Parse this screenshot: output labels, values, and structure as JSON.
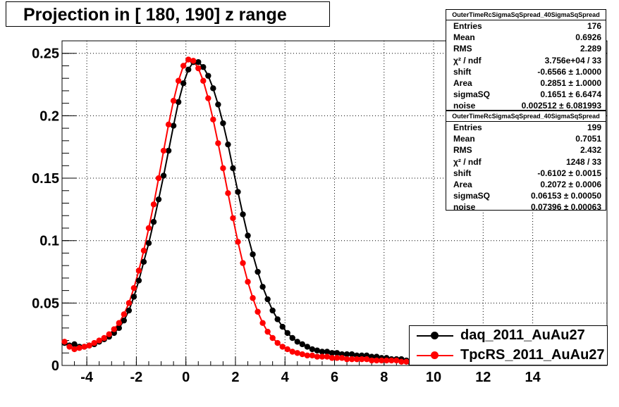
{
  "chart_data": {
    "type": "scatter",
    "title": "Projection in [ 180, 190] z range",
    "xlabel": "",
    "ylabel": "",
    "xlim": [
      -5,
      17
    ],
    "ylim": [
      0,
      0.26
    ],
    "grid": true,
    "xticks": [
      -4,
      -2,
      0,
      2,
      4,
      6,
      8,
      10,
      12,
      14
    ],
    "yticks": [
      0,
      0.05,
      0.1,
      0.15,
      0.2,
      0.25
    ],
    "xtick_labels": [
      "-4",
      "-2",
      "0",
      "2",
      "4",
      "6",
      "8",
      "10",
      "12",
      "14"
    ],
    "ytick_labels": [
      "0",
      "0.05",
      "0.1",
      "0.15",
      "0.2",
      "0.25"
    ],
    "legend_position": "bottom-right",
    "series": [
      {
        "name": "daq_2011_AuAu27",
        "color": "#000000",
        "marker": "circle",
        "x": [
          -4.9,
          -4.7,
          -4.5,
          -4.3,
          -4.1,
          -3.9,
          -3.7,
          -3.5,
          -3.3,
          -3.1,
          -2.9,
          -2.7,
          -2.5,
          -2.3,
          -2.1,
          -1.9,
          -1.7,
          -1.5,
          -1.3,
          -1.1,
          -0.9,
          -0.7,
          -0.5,
          -0.3,
          -0.1,
          0.1,
          0.3,
          0.5,
          0.7,
          0.9,
          1.1,
          1.3,
          1.5,
          1.7,
          1.9,
          2.1,
          2.3,
          2.5,
          2.7,
          2.9,
          3.1,
          3.3,
          3.5,
          3.7,
          3.9,
          4.1,
          4.3,
          4.5,
          4.7,
          4.9,
          5.1,
          5.3,
          5.5,
          5.7,
          5.9,
          6.1,
          6.3,
          6.5,
          6.7,
          6.9,
          7.1,
          7.3,
          7.5,
          7.7,
          7.9,
          8.1,
          8.3,
          8.5,
          8.7,
          8.9,
          9.1
        ],
        "y": [
          0.018,
          0.016,
          0.017,
          0.015,
          0.015,
          0.016,
          0.017,
          0.019,
          0.021,
          0.023,
          0.026,
          0.03,
          0.036,
          0.044,
          0.055,
          0.068,
          0.083,
          0.098,
          0.115,
          0.133,
          0.152,
          0.172,
          0.192,
          0.211,
          0.226,
          0.237,
          0.243,
          0.243,
          0.239,
          0.232,
          0.222,
          0.209,
          0.194,
          0.177,
          0.158,
          0.139,
          0.121,
          0.104,
          0.089,
          0.075,
          0.063,
          0.053,
          0.044,
          0.037,
          0.031,
          0.026,
          0.022,
          0.019,
          0.017,
          0.015,
          0.013,
          0.012,
          0.011,
          0.011,
          0.01,
          0.01,
          0.009,
          0.009,
          0.009,
          0.008,
          0.008,
          0.008,
          0.007,
          0.007,
          0.006,
          0.006,
          0.005,
          0.005,
          0.005,
          0.004,
          0.004
        ]
      },
      {
        "name": "TpcRS_2011_AuAu27",
        "color": "#ff0000",
        "marker": "circle",
        "x": [
          -4.9,
          -4.7,
          -4.5,
          -4.3,
          -4.1,
          -3.9,
          -3.7,
          -3.5,
          -3.3,
          -3.1,
          -2.9,
          -2.7,
          -2.5,
          -2.3,
          -2.1,
          -1.9,
          -1.7,
          -1.5,
          -1.3,
          -1.1,
          -0.9,
          -0.7,
          -0.5,
          -0.3,
          -0.1,
          0.1,
          0.3,
          0.5,
          0.7,
          0.9,
          1.1,
          1.3,
          1.5,
          1.7,
          1.9,
          2.1,
          2.3,
          2.5,
          2.7,
          2.9,
          3.1,
          3.3,
          3.5,
          3.7,
          3.9,
          4.1,
          4.3,
          4.5,
          4.7,
          4.9,
          5.1,
          5.3,
          5.5,
          5.7,
          5.9,
          6.1,
          6.3,
          6.5,
          6.7,
          6.9,
          7.1,
          7.3,
          7.5,
          7.7,
          7.9,
          8.1,
          8.3,
          8.5,
          8.7,
          8.9,
          9.1
        ],
        "y": [
          0.019,
          0.015,
          0.013,
          0.014,
          0.015,
          0.016,
          0.018,
          0.02,
          0.022,
          0.025,
          0.029,
          0.034,
          0.041,
          0.05,
          0.062,
          0.076,
          0.092,
          0.11,
          0.129,
          0.15,
          0.172,
          0.193,
          0.212,
          0.228,
          0.24,
          0.245,
          0.244,
          0.238,
          0.228,
          0.214,
          0.197,
          0.178,
          0.158,
          0.138,
          0.118,
          0.099,
          0.082,
          0.067,
          0.054,
          0.043,
          0.034,
          0.027,
          0.022,
          0.018,
          0.015,
          0.013,
          0.011,
          0.01,
          0.009,
          0.008,
          0.008,
          0.007,
          0.007,
          0.007,
          0.006,
          0.006,
          0.006,
          0.005,
          0.005,
          0.005,
          0.005,
          0.005,
          0.004,
          0.004,
          0.004,
          0.004,
          0.004,
          0.004,
          0.003,
          0.003,
          0.003
        ]
      }
    ],
    "fit_curves": [
      {
        "color": "#000000",
        "peak_x": 0.7,
        "peak_y": 0.248
      },
      {
        "color": "#ff0000",
        "peak_x": 0.3,
        "peak_y": 0.237
      }
    ]
  },
  "stats_boxes": [
    {
      "title": "OuterTimeRcSigmaSqSpread_40SigmaSqSpread",
      "rows": [
        {
          "k": "Entries",
          "v": "176"
        },
        {
          "k": "Mean",
          "v": "0.6926"
        },
        {
          "k": "RMS",
          "v": "2.289"
        },
        {
          "k": "χ² / ndf",
          "v": "3.756e+04 / 33"
        },
        {
          "k": "shift",
          "v": "-0.6566 ± 1.0000"
        },
        {
          "k": "Area",
          "v": "0.2851 ± 1.0000"
        },
        {
          "k": "sigmaSQ",
          "v": "0.1651 ± 6.6474"
        },
        {
          "k": "noise",
          "v": "0.002512 ± 6.081993"
        }
      ]
    },
    {
      "title": "OuterTimeRcSigmaSqSpread_40SigmaSqSpread",
      "rows": [
        {
          "k": "Entries",
          "v": "199"
        },
        {
          "k": "Mean",
          "v": "0.7051"
        },
        {
          "k": "RMS",
          "v": "2.432"
        },
        {
          "k": "χ² / ndf",
          "v": "1248 / 33"
        },
        {
          "k": "shift",
          "v": "-0.6102 ± 0.0015"
        },
        {
          "k": "Area",
          "v": "0.2072 ± 0.0006"
        },
        {
          "k": "sigmaSQ",
          "v": "0.06153 ± 0.00050"
        },
        {
          "k": "noise",
          "v": "0.07396 ± 0.00063"
        }
      ]
    }
  ]
}
